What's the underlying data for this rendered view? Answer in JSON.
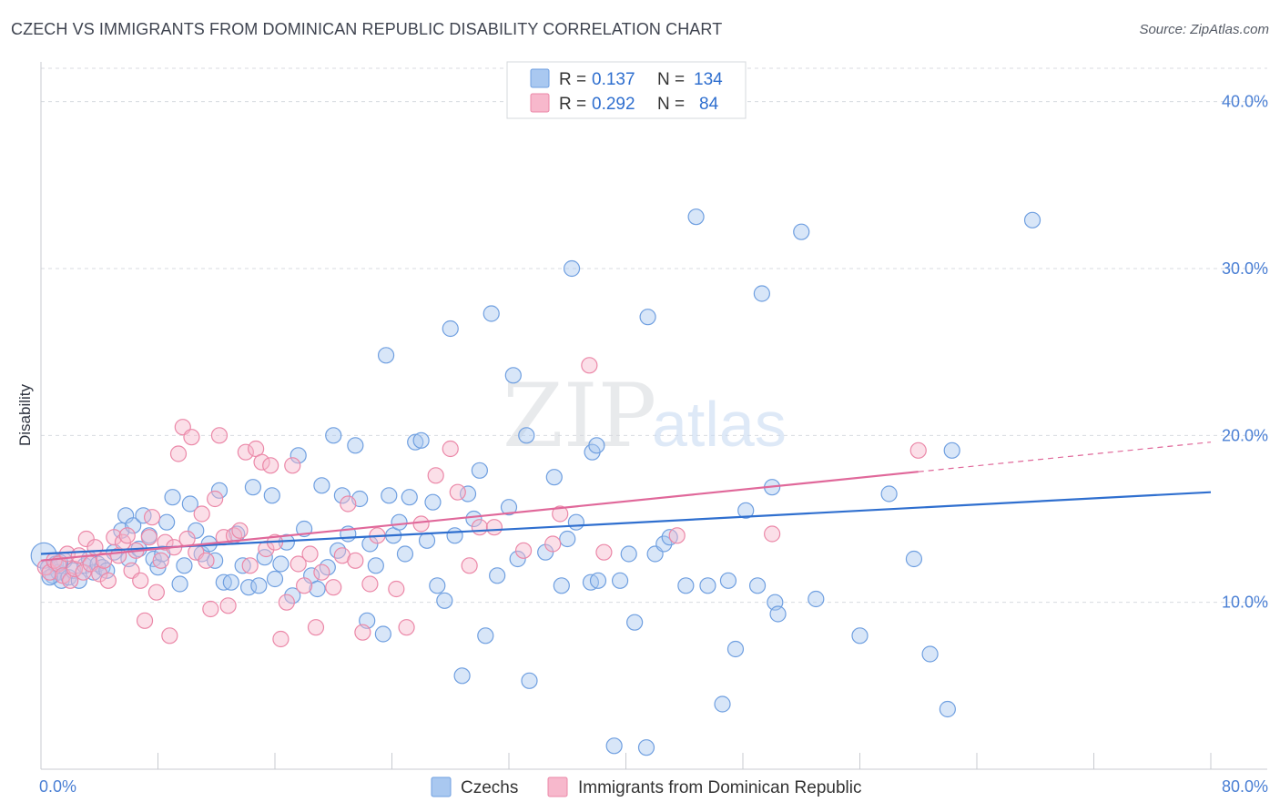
{
  "header": {
    "title": "CZECH VS IMMIGRANTS FROM DOMINICAN REPUBLIC DISABILITY CORRELATION CHART",
    "source": "Source: ZipAtlas.com"
  },
  "watermark": {
    "zip": "ZIP",
    "atlas": "atlas"
  },
  "legend": {
    "items": [
      {
        "r_label": "R =",
        "r_value": "0.137",
        "n_label": "N =",
        "n_value": "134"
      },
      {
        "r_label": "R =",
        "r_value": "0.292",
        "n_label": "N =",
        "n_value": "84"
      }
    ]
  },
  "bottom_legend": [
    "Czechs",
    "Immigrants from Dominican Republic"
  ],
  "colors": {
    "czech_fill": "#a9c8f0",
    "czech_stroke": "#6f9fe0",
    "czech_line": "#2f6fcf",
    "dom_fill": "#f7b8cc",
    "dom_stroke": "#eb88a8",
    "dom_line": "#e0689a",
    "grid": "#d8dbe0",
    "tick_label": "#4a7fd4"
  },
  "chart_data": {
    "type": "scatter",
    "title": "CZECH VS IMMIGRANTS FROM DOMINICAN REPUBLIC DISABILITY CORRELATION CHART",
    "xlabel": "",
    "ylabel": "Disability",
    "xlim": [
      0,
      80
    ],
    "ylim": [
      0,
      42
    ],
    "x_tick_labels": [
      "0.0%",
      "80.0%"
    ],
    "y_ticks": [
      10,
      20,
      30,
      40
    ],
    "y_tick_labels": [
      "10.0%",
      "20.0%",
      "30.0%",
      "40.0%"
    ],
    "grid": "horizontal dashed",
    "legend_placement": "top-center",
    "series": [
      {
        "name": "Czechs",
        "r": 0.137,
        "n": 134,
        "trend": {
          "x": [
            0,
            80
          ],
          "y": [
            12.9,
            16.6
          ],
          "dashed_from": null
        },
        "points": [
          [
            0.2,
            12.8
          ],
          [
            0.5,
            12.1
          ],
          [
            0.8,
            11.6
          ],
          [
            1.0,
            12.3
          ],
          [
            1.2,
            11.8
          ],
          [
            1.4,
            11.3
          ],
          [
            1.6,
            12.5
          ],
          [
            1.9,
            11.5
          ],
          [
            2.2,
            11.9
          ],
          [
            2.6,
            11.3
          ],
          [
            3.0,
            12.2
          ],
          [
            3.3,
            12.6
          ],
          [
            3.6,
            11.8
          ],
          [
            3.9,
            12.3
          ],
          [
            4.2,
            12.1
          ],
          [
            4.5,
            11.9
          ],
          [
            5.0,
            13.0
          ],
          [
            5.5,
            14.3
          ],
          [
            5.8,
            15.2
          ],
          [
            6.0,
            12.6
          ],
          [
            6.3,
            14.6
          ],
          [
            6.7,
            13.2
          ],
          [
            7.0,
            15.2
          ],
          [
            7.4,
            14.0
          ],
          [
            7.7,
            12.6
          ],
          [
            8.0,
            12.1
          ],
          [
            8.3,
            12.9
          ],
          [
            8.6,
            14.8
          ],
          [
            9.0,
            16.3
          ],
          [
            9.5,
            11.1
          ],
          [
            9.8,
            12.2
          ],
          [
            10.2,
            15.9
          ],
          [
            10.6,
            14.3
          ],
          [
            11.0,
            12.9
          ],
          [
            11.5,
            13.5
          ],
          [
            11.9,
            12.5
          ],
          [
            12.2,
            16.7
          ],
          [
            12.5,
            11.2
          ],
          [
            13.0,
            11.2
          ],
          [
            13.4,
            14.1
          ],
          [
            13.8,
            12.2
          ],
          [
            14.2,
            10.9
          ],
          [
            14.5,
            16.9
          ],
          [
            14.9,
            11.0
          ],
          [
            15.3,
            12.7
          ],
          [
            15.8,
            16.4
          ],
          [
            16.0,
            11.4
          ],
          [
            16.4,
            12.3
          ],
          [
            16.8,
            13.6
          ],
          [
            17.2,
            10.4
          ],
          [
            17.6,
            18.8
          ],
          [
            18.0,
            14.4
          ],
          [
            18.5,
            11.6
          ],
          [
            18.9,
            10.8
          ],
          [
            19.2,
            17.0
          ],
          [
            19.6,
            12.1
          ],
          [
            20.0,
            20.0
          ],
          [
            20.3,
            13.1
          ],
          [
            20.6,
            16.4
          ],
          [
            21.0,
            14.1
          ],
          [
            21.5,
            19.4
          ],
          [
            21.8,
            16.2
          ],
          [
            22.3,
            8.9
          ],
          [
            22.5,
            13.5
          ],
          [
            22.9,
            12.2
          ],
          [
            23.4,
            8.1
          ],
          [
            23.8,
            16.4
          ],
          [
            24.1,
            14.0
          ],
          [
            24.5,
            14.8
          ],
          [
            24.9,
            12.9
          ],
          [
            23.6,
            24.8
          ],
          [
            25.2,
            16.3
          ],
          [
            25.6,
            19.6
          ],
          [
            26.0,
            19.7
          ],
          [
            26.4,
            13.7
          ],
          [
            26.8,
            16.0
          ],
          [
            27.1,
            11.0
          ],
          [
            27.6,
            10.1
          ],
          [
            28.0,
            26.4
          ],
          [
            28.3,
            14.0
          ],
          [
            28.8,
            5.6
          ],
          [
            29.2,
            16.5
          ],
          [
            29.6,
            15.0
          ],
          [
            30.0,
            17.9
          ],
          [
            30.4,
            8.0
          ],
          [
            30.8,
            27.3
          ],
          [
            31.2,
            11.6
          ],
          [
            32.0,
            15.7
          ],
          [
            32.3,
            23.6
          ],
          [
            32.6,
            12.6
          ],
          [
            33.2,
            20.0
          ],
          [
            33.4,
            5.3
          ],
          [
            34.5,
            13.0
          ],
          [
            35.1,
            17.5
          ],
          [
            35.6,
            11.0
          ],
          [
            36.0,
            13.8
          ],
          [
            36.3,
            30.0
          ],
          [
            36.6,
            14.8
          ],
          [
            37.7,
            19.0
          ],
          [
            38.0,
            19.4
          ],
          [
            37.6,
            11.2
          ],
          [
            38.1,
            11.3
          ],
          [
            39.2,
            1.4
          ],
          [
            39.6,
            11.3
          ],
          [
            40.2,
            12.9
          ],
          [
            40.6,
            8.8
          ],
          [
            41.4,
            1.3
          ],
          [
            41.5,
            27.1
          ],
          [
            42.0,
            12.9
          ],
          [
            42.6,
            13.5
          ],
          [
            43.0,
            13.9
          ],
          [
            44.1,
            11.0
          ],
          [
            44.8,
            33.1
          ],
          [
            45.6,
            11.0
          ],
          [
            46.6,
            3.9
          ],
          [
            47.0,
            11.3
          ],
          [
            47.5,
            7.2
          ],
          [
            48.2,
            15.5
          ],
          [
            49.0,
            11.0
          ],
          [
            49.3,
            28.5
          ],
          [
            50.0,
            16.9
          ],
          [
            50.2,
            10.0
          ],
          [
            50.4,
            9.3
          ],
          [
            52.0,
            32.2
          ],
          [
            53.0,
            10.2
          ],
          [
            56.0,
            8.0
          ],
          [
            58.0,
            16.5
          ],
          [
            59.7,
            12.6
          ],
          [
            60.8,
            6.9
          ],
          [
            62.0,
            3.6
          ],
          [
            62.3,
            19.1
          ],
          [
            67.8,
            32.9
          ],
          [
            0.6,
            11.5
          ],
          [
            1.3,
            12.4
          ]
        ]
      },
      {
        "name": "Immigrants from Dominican Republic",
        "r": 0.292,
        "n": 84,
        "trend": {
          "x": [
            0,
            80
          ],
          "y": [
            12.5,
            19.6
          ],
          "dashed_from": 60
        },
        "points": [
          [
            0.3,
            12.1
          ],
          [
            0.6,
            11.8
          ],
          [
            0.9,
            12.5
          ],
          [
            1.2,
            12.3
          ],
          [
            1.5,
            11.6
          ],
          [
            1.8,
            12.9
          ],
          [
            2.0,
            11.3
          ],
          [
            2.3,
            12.0
          ],
          [
            2.6,
            12.8
          ],
          [
            2.9,
            11.8
          ],
          [
            3.1,
            13.8
          ],
          [
            3.4,
            12.3
          ],
          [
            3.7,
            13.3
          ],
          [
            4.0,
            11.7
          ],
          [
            4.3,
            12.5
          ],
          [
            4.6,
            11.3
          ],
          [
            5.0,
            13.9
          ],
          [
            5.3,
            12.8
          ],
          [
            5.6,
            13.6
          ],
          [
            5.9,
            14.0
          ],
          [
            6.2,
            11.9
          ],
          [
            6.5,
            13.1
          ],
          [
            6.8,
            11.3
          ],
          [
            7.1,
            8.9
          ],
          [
            7.4,
            13.9
          ],
          [
            7.6,
            15.1
          ],
          [
            7.9,
            10.6
          ],
          [
            8.2,
            12.5
          ],
          [
            8.5,
            13.6
          ],
          [
            8.8,
            8.0
          ],
          [
            9.1,
            13.3
          ],
          [
            9.4,
            18.9
          ],
          [
            9.7,
            20.5
          ],
          [
            10.0,
            13.8
          ],
          [
            10.3,
            19.9
          ],
          [
            10.6,
            13.0
          ],
          [
            11.0,
            15.3
          ],
          [
            11.3,
            12.5
          ],
          [
            11.6,
            9.6
          ],
          [
            11.9,
            16.2
          ],
          [
            12.2,
            20.0
          ],
          [
            12.5,
            13.9
          ],
          [
            12.8,
            9.8
          ],
          [
            13.2,
            14.0
          ],
          [
            13.6,
            14.3
          ],
          [
            14.0,
            19.0
          ],
          [
            14.3,
            12.2
          ],
          [
            14.7,
            19.2
          ],
          [
            15.1,
            18.4
          ],
          [
            15.4,
            13.2
          ],
          [
            15.7,
            18.2
          ],
          [
            16.0,
            13.6
          ],
          [
            16.4,
            7.8
          ],
          [
            16.8,
            10.0
          ],
          [
            17.2,
            18.2
          ],
          [
            17.6,
            12.3
          ],
          [
            18.0,
            11.0
          ],
          [
            18.4,
            12.9
          ],
          [
            18.8,
            8.5
          ],
          [
            19.2,
            11.8
          ],
          [
            20.0,
            10.9
          ],
          [
            20.6,
            12.8
          ],
          [
            21.0,
            15.9
          ],
          [
            21.5,
            12.5
          ],
          [
            22.0,
            8.2
          ],
          [
            22.5,
            11.1
          ],
          [
            23.0,
            14.0
          ],
          [
            24.3,
            10.8
          ],
          [
            25.0,
            8.5
          ],
          [
            26.0,
            14.7
          ],
          [
            27.0,
            17.6
          ],
          [
            28.0,
            19.2
          ],
          [
            28.5,
            16.6
          ],
          [
            29.3,
            12.2
          ],
          [
            30.0,
            14.5
          ],
          [
            31.0,
            14.5
          ],
          [
            33.0,
            13.1
          ],
          [
            35.0,
            13.5
          ],
          [
            35.5,
            15.3
          ],
          [
            37.5,
            24.2
          ],
          [
            38.5,
            13.0
          ],
          [
            43.5,
            14.0
          ],
          [
            50.0,
            14.1
          ],
          [
            60.0,
            19.1
          ]
        ]
      }
    ]
  }
}
